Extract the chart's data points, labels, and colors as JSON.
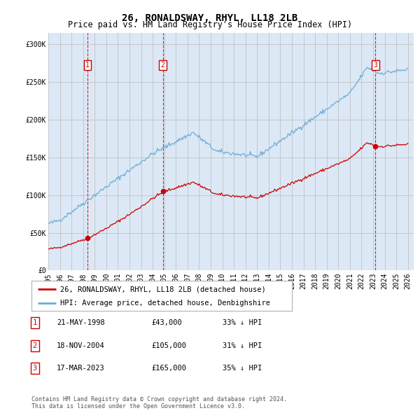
{
  "title": "26, RONALDSWAY, RHYL, LL18 2LB",
  "subtitle": "Price paid vs. HM Land Registry's House Price Index (HPI)",
  "ylabel_ticks": [
    "£0",
    "£50K",
    "£100K",
    "£150K",
    "£200K",
    "£250K",
    "£300K"
  ],
  "ytick_values": [
    0,
    50000,
    100000,
    150000,
    200000,
    250000,
    300000
  ],
  "ylim": [
    0,
    315000
  ],
  "xlim_start": 1995.0,
  "xlim_end": 2026.5,
  "sale_dates": [
    1998.38,
    2004.88,
    2023.21
  ],
  "sale_prices": [
    43000,
    105000,
    165000
  ],
  "sale_labels": [
    "1",
    "2",
    "3"
  ],
  "legend_line1": "26, RONALDSWAY, RHYL, LL18 2LB (detached house)",
  "legend_line2": "HPI: Average price, detached house, Denbighshire",
  "table_data": [
    [
      "1",
      "21-MAY-1998",
      "£43,000",
      "33% ↓ HPI"
    ],
    [
      "2",
      "18-NOV-2004",
      "£105,000",
      "31% ↓ HPI"
    ],
    [
      "3",
      "17-MAR-2023",
      "£165,000",
      "35% ↓ HPI"
    ]
  ],
  "footnote": "Contains HM Land Registry data © Crown copyright and database right 2024.\nThis data is licensed under the Open Government Licence v3.0.",
  "hpi_color": "#6baed6",
  "price_color": "#cc0000",
  "vline_color": "#cc0000",
  "bg_color": "#ffffff",
  "plot_bg_color": "#dce8f5",
  "grid_color": "#bbbbbb",
  "title_fontsize": 10,
  "subtitle_fontsize": 8.5,
  "tick_fontsize": 7.0,
  "legend_fontsize": 7.5,
  "table_fontsize": 7.5,
  "footnote_fontsize": 6.0
}
